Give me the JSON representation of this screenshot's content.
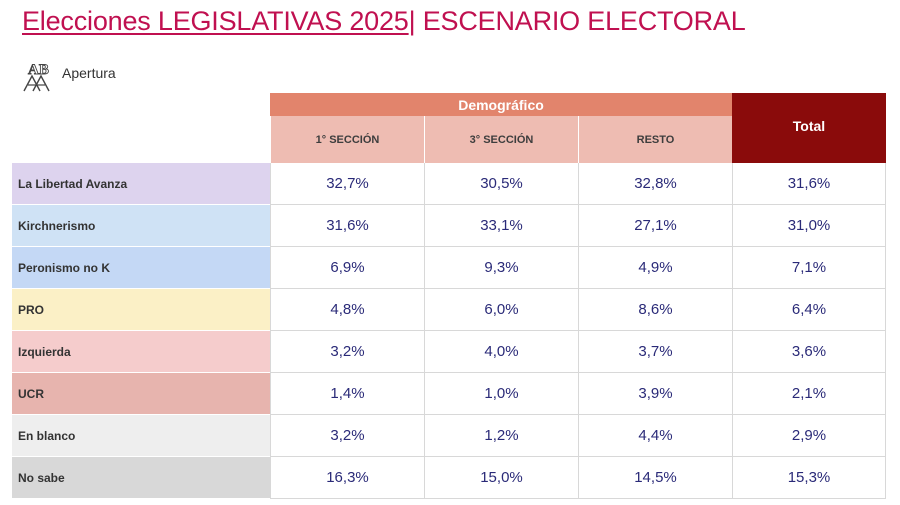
{
  "header": {
    "title_main": "Elecciones LEGISLATIVAS 2025",
    "title_rest": "| ESCENARIO ELECTORAL"
  },
  "brand": {
    "name": "Apertura",
    "logo_text": "AB",
    "icon": "apertura-logo"
  },
  "table": {
    "group_header": "Demográfico",
    "total_header": "Total",
    "columns": [
      "1° SECCIÓN",
      "3° SECCIÓN",
      "RESTO"
    ],
    "rows": [
      {
        "label": "La Libertad Avanza",
        "color": "#ddd3ee",
        "values": [
          "32,7%",
          "30,5%",
          "32,8%",
          "31,6%"
        ]
      },
      {
        "label": "Kirchnerismo",
        "color": "#cfe2f5",
        "values": [
          "31,6%",
          "33,1%",
          "27,1%",
          "31,0%"
        ]
      },
      {
        "label": "Peronismo no K",
        "color": "#c4d8f5",
        "values": [
          "6,9%",
          "9,3%",
          "4,9%",
          "7,1%"
        ]
      },
      {
        "label": "PRO",
        "color": "#fbf0c6",
        "values": [
          "4,8%",
          "6,0%",
          "8,6%",
          "6,4%"
        ]
      },
      {
        "label": "Izquierda",
        "color": "#f5cccc",
        "values": [
          "3,2%",
          "4,0%",
          "3,7%",
          "3,6%"
        ]
      },
      {
        "label": "UCR",
        "color": "#e7b4ae",
        "values": [
          "1,4%",
          "1,0%",
          "3,9%",
          "2,1%"
        ]
      },
      {
        "label": "En blanco",
        "color": "#eeeeee",
        "values": [
          "3,2%",
          "1,2%",
          "4,4%",
          "2,9%"
        ]
      },
      {
        "label": "No sabe",
        "color": "#d8d8d8",
        "values": [
          "16,3%",
          "15,0%",
          "14,5%",
          "15,3%"
        ]
      }
    ]
  },
  "colors": {
    "title": "#c01050",
    "group_header_bg": "#e2846c",
    "sub_header_bg": "#eebcb2",
    "total_header_bg": "#8a0b0b",
    "value_text": "#2a2a78"
  }
}
